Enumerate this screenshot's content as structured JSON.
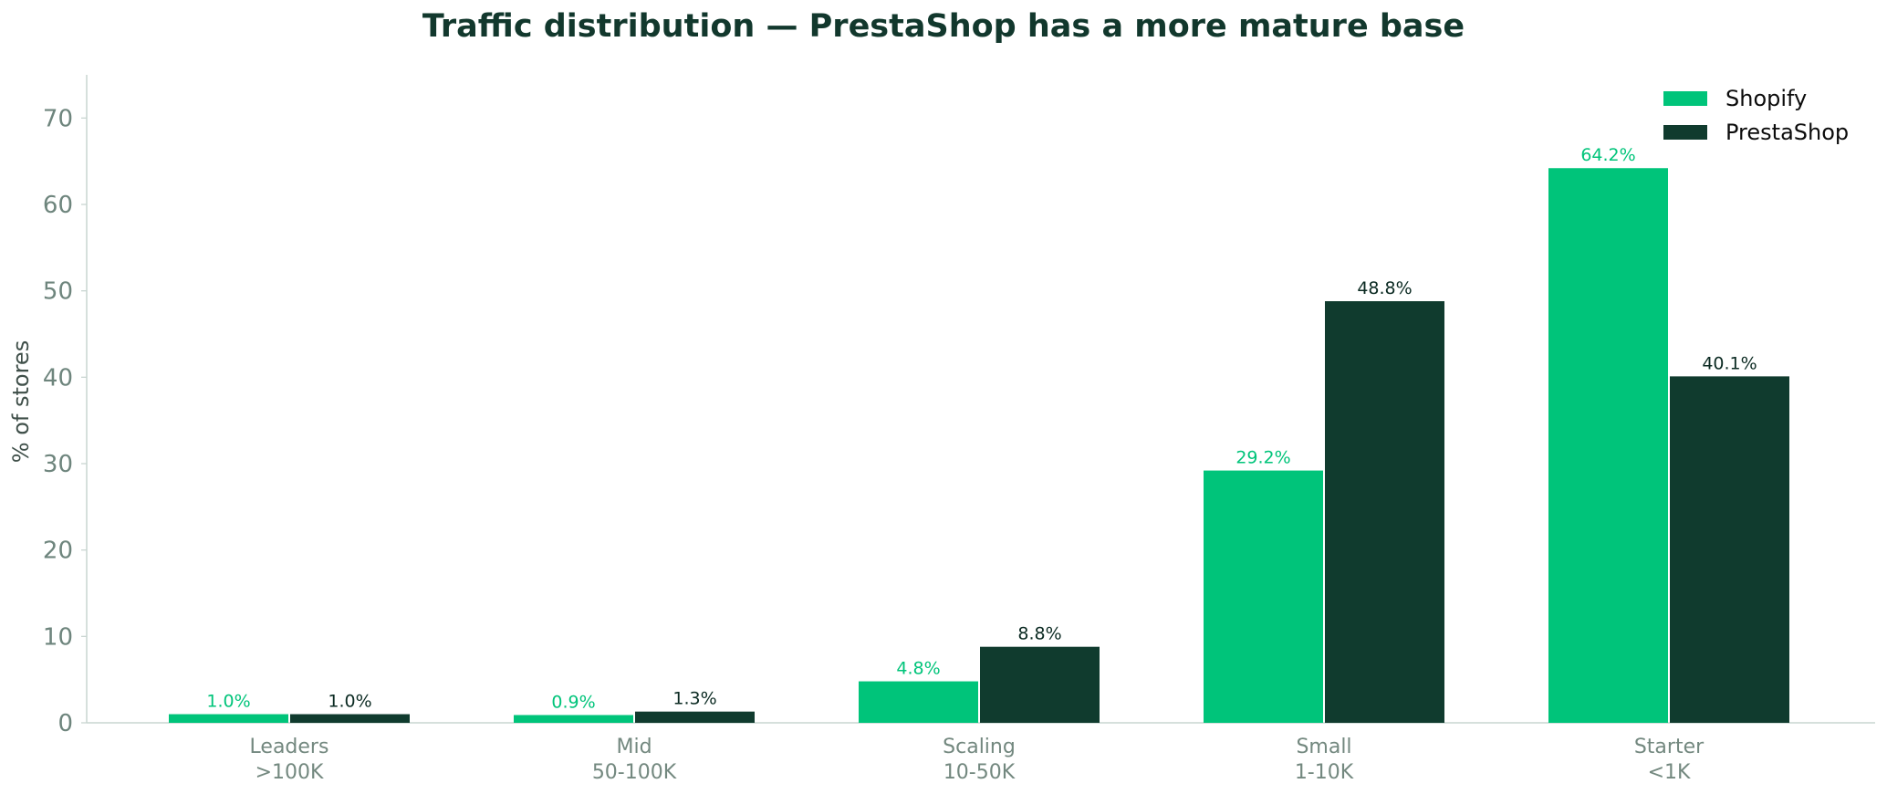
{
  "chart_data": {
    "type": "bar",
    "title": "Traffic distribution — PrestaShop has a more mature base",
    "xlabel": "",
    "ylabel": "% of stores",
    "ylim": [
      0,
      75
    ],
    "yticks": [
      0,
      10,
      20,
      30,
      40,
      50,
      60,
      70
    ],
    "grid": false,
    "legend_position": "top-right",
    "categories": [
      [
        "Leaders",
        ">100K"
      ],
      [
        "Mid",
        "50-100K"
      ],
      [
        "Scaling",
        "10-50K"
      ],
      [
        "Small",
        "1-10K"
      ],
      [
        "Starter",
        "<1K"
      ]
    ],
    "series": [
      {
        "name": "Shopify",
        "color": "#00C47A",
        "label_color": "#00C47A",
        "values": [
          1.0,
          0.9,
          4.8,
          29.2,
          64.2
        ],
        "labels": [
          "1.0%",
          "0.9%",
          "4.8%",
          "29.2%",
          "64.2%"
        ]
      },
      {
        "name": "PrestaShop",
        "color": "#103B2E",
        "label_color": "#0B2A22",
        "values": [
          1.0,
          1.3,
          8.8,
          48.8,
          40.1
        ],
        "labels": [
          "1.0%",
          "1.3%",
          "8.8%",
          "48.8%",
          "40.1%"
        ]
      }
    ]
  }
}
